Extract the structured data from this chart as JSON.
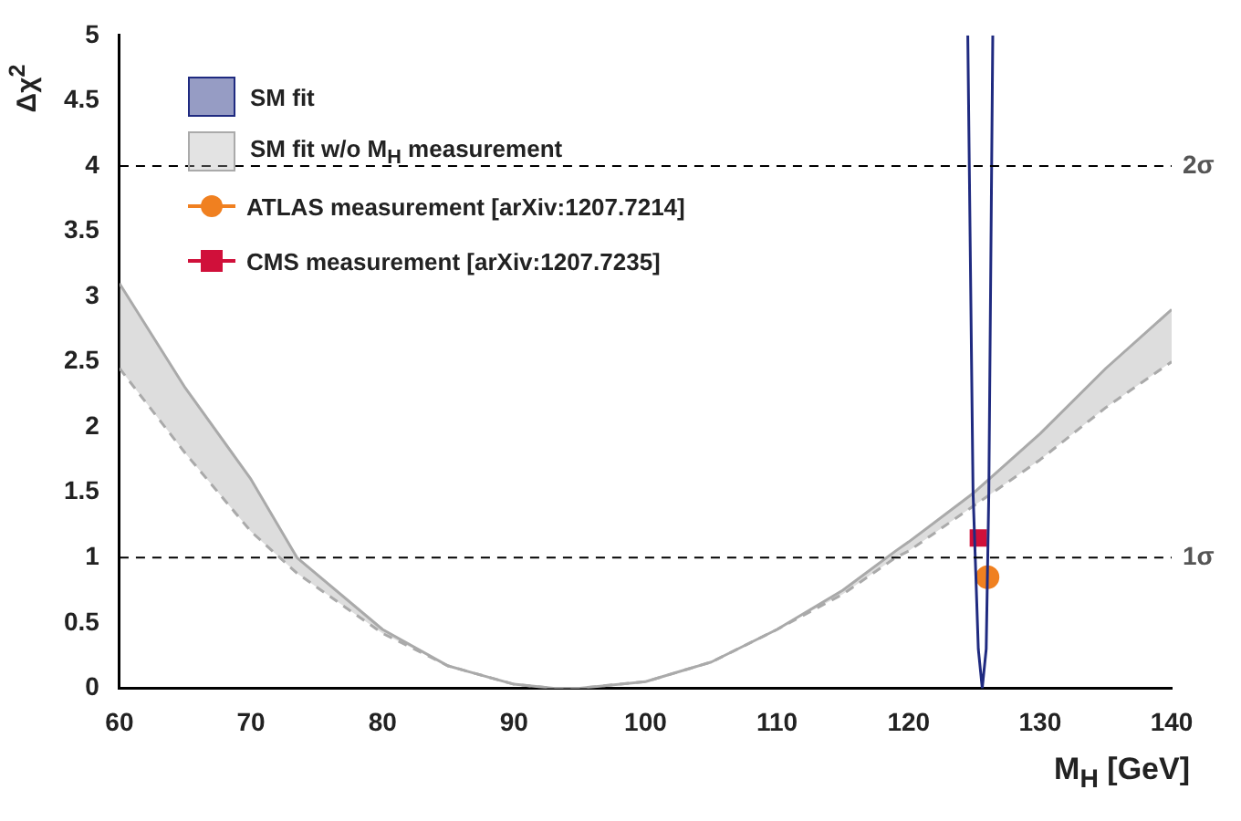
{
  "chart_data": {
    "type": "line",
    "xlabel": "M$_{H}$ [GeV]",
    "ylabel": "Δχ$^{2}$",
    "xlim": [
      60,
      140
    ],
    "ylim": [
      0,
      5
    ],
    "xticks": [
      60,
      70,
      80,
      90,
      100,
      110,
      120,
      130,
      140
    ],
    "yticks": [
      0,
      0.5,
      1,
      1.5,
      2,
      2.5,
      3,
      3.5,
      4,
      4.5,
      5
    ],
    "grid": false,
    "legend": "top left",
    "line_style": "solid",
    "marker": "none",
    "series": [
      {
        "name": "SM fit",
        "type": "line",
        "color": "#1f2a80",
        "x": [
          124.5,
          124.9,
          125.3,
          125.6,
          125.9,
          126.1,
          126.4
        ],
        "values": [
          5,
          1.5,
          0.3,
          0,
          0.3,
          1.5,
          5
        ]
      },
      {
        "name": "SM fit w/o M$_{H}$ measurement",
        "type": "line",
        "color": "#aaaaaa",
        "x": [
          60,
          65,
          70,
          73.5,
          80,
          85,
          90,
          93,
          95,
          100,
          105,
          110,
          115,
          119,
          120,
          125,
          130,
          135,
          140
        ],
        "values": [
          3.1,
          2.3,
          1.6,
          1,
          0.45,
          0.17,
          0.03,
          0,
          0,
          0.05,
          0.2,
          0.45,
          0.75,
          1.05,
          1.12,
          1.5,
          1.95,
          2.45,
          2.9
        ],
        "upper": [
          3.1,
          2.3,
          1.6,
          1,
          0.45,
          0.17,
          0.03,
          0,
          0,
          0.05,
          0.2,
          0.45,
          0.75,
          1.05,
          1.12,
          1.5,
          1.95,
          2.45,
          2.9
        ],
        "lower": [
          2.45,
          1.8,
          1.2,
          0.88,
          0.42,
          0.17,
          0.03,
          0,
          0,
          0.05,
          0.2,
          0.45,
          0.72,
          1,
          1.05,
          1.4,
          1.75,
          2.15,
          2.5
        ]
      },
      {
        "type": "line",
        "color": "#aaaaaa",
        "line_style": "dashed",
        "x": [
          60,
          65,
          70,
          73.5,
          80,
          85,
          90,
          93,
          95,
          100,
          105,
          110,
          115,
          119,
          120,
          125,
          130,
          135,
          140
        ],
        "values": [
          2.45,
          1.8,
          1.2,
          0.88,
          0.42,
          0.17,
          0.03,
          0,
          0,
          0.05,
          0.2,
          0.45,
          0.72,
          1,
          1.05,
          1.4,
          1.75,
          2.15,
          2.5
        ]
      },
      {
        "name": "ATLAS measurement [arXiv:1207.7214]",
        "type": "scatter",
        "marker": "circle",
        "color": "#f08020",
        "x": [
          126.0
        ],
        "values": [
          0.85
        ]
      },
      {
        "name": "CMS measurement [arXiv:1207.7235]",
        "type": "scatter",
        "marker": "square",
        "color": "#d0103a",
        "x": [
          125.3
        ],
        "values": [
          1.15
        ]
      }
    ],
    "ref_lines": [
      {
        "axis": "y",
        "value": 4,
        "label": "2σ",
        "line_style": "dashed",
        "color": "#000000"
      },
      {
        "axis": "y",
        "value": 1,
        "label": "1σ",
        "line_style": "dashed",
        "color": "#000000"
      }
    ]
  }
}
